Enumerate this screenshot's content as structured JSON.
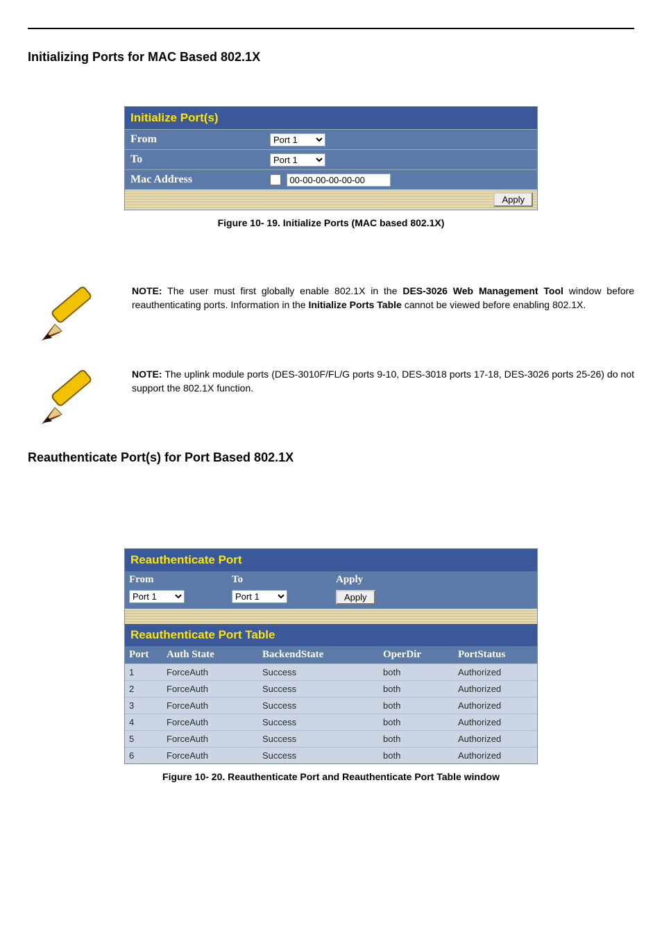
{
  "heading1": "Initializing Ports for MAC Based 802.1X",
  "initializePanel": {
    "title": "Initialize Port(s)",
    "fromLabel": "From",
    "toLabel": "To",
    "macLabel": "Mac Address",
    "fromValue": "Port 1",
    "toValue": "Port 1",
    "macValue": "00-00-00-00-00-00",
    "applyLabel": "Apply"
  },
  "caption1": "Figure 10- 19. Initialize Ports (MAC based 802.1X)",
  "note1": {
    "label": "NOTE:",
    "pre": " The user must first globally enable 802.1X in the ",
    "bold1": "DES-3026 Web Management Tool",
    "mid": " window before reauthenticating ports. Information in the ",
    "bold2": "Initialize Ports Table",
    "post": " cannot be viewed before enabling 802.1X."
  },
  "note2": {
    "label": "NOTE:",
    "text": " The uplink module ports (DES-3010F/FL/G ports 9-10, DES-3018 ports 17-18, DES-3026 ports 25-26) do not support the 802.1X function."
  },
  "heading2": "Reauthenticate Port(s) for Port Based 802.1X",
  "reauthPanel": {
    "title": "Reauthenticate Port",
    "fromLabel": "From",
    "toLabel": "To",
    "applyHeader": "Apply",
    "fromValue": "Port 1",
    "toValue": "Port 1",
    "applyBtn": "Apply",
    "tableTitle": "Reauthenticate Port Table",
    "columns": {
      "port": "Port",
      "auth": "Auth State",
      "back": "BackendState",
      "oper": "OperDir",
      "stat": "PortStatus"
    },
    "rows": [
      {
        "port": "1",
        "auth": "ForceAuth",
        "back": "Success",
        "oper": "both",
        "stat": "Authorized"
      },
      {
        "port": "2",
        "auth": "ForceAuth",
        "back": "Success",
        "oper": "both",
        "stat": "Authorized"
      },
      {
        "port": "3",
        "auth": "ForceAuth",
        "back": "Success",
        "oper": "both",
        "stat": "Authorized"
      },
      {
        "port": "4",
        "auth": "ForceAuth",
        "back": "Success",
        "oper": "both",
        "stat": "Authorized"
      },
      {
        "port": "5",
        "auth": "ForceAuth",
        "back": "Success",
        "oper": "both",
        "stat": "Authorized"
      },
      {
        "port": "6",
        "auth": "ForceAuth",
        "back": "Success",
        "oper": "both",
        "stat": "Authorized"
      }
    ]
  },
  "caption2": "Figure 10- 20. Reauthenticate Port and Reauthenticate Port Table window"
}
